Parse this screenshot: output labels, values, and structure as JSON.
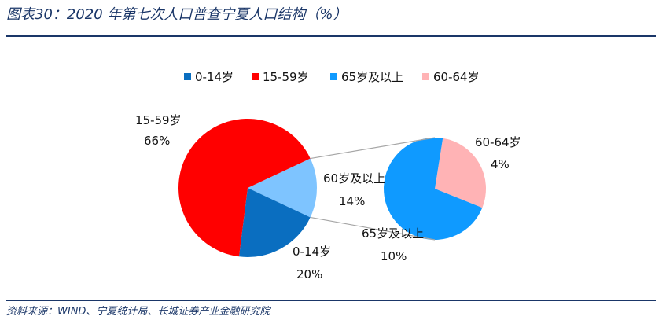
{
  "header": {
    "title": "图表30：2020 年第七次人口普查宁夏人口结构（%）"
  },
  "footer": {
    "source": "资料来源：WIND、宁夏统计局、长城证券产业金融研究院"
  },
  "chart_data": {
    "type": "pie",
    "subtype": "pie-of-pie",
    "legend_position": "top",
    "main_pie": {
      "slices": [
        {
          "name": "0-14岁",
          "value": 20,
          "label": "20%",
          "color": "#0a6ec0"
        },
        {
          "name": "15-59岁",
          "value": 66,
          "label": "66%",
          "color": "#ff0000"
        },
        {
          "name": "60岁及以上",
          "value": 14,
          "label": "14%",
          "color": "#7ec4ff"
        }
      ]
    },
    "secondary_pie": {
      "breakdown_of": "60岁及以上",
      "slices": [
        {
          "name": "65岁及以上",
          "value": 10,
          "label": "10%",
          "color": "#0f9aff"
        },
        {
          "name": "60-64岁",
          "value": 4,
          "label": "4%",
          "color": "#ffb3b5"
        }
      ]
    },
    "legend": [
      {
        "label": "0-14岁",
        "color": "#0a6ec0"
      },
      {
        "label": "15-59岁",
        "color": "#ff0000"
      },
      {
        "label": "65岁及以上",
        "color": "#0f9aff"
      },
      {
        "label": "60-64岁",
        "color": "#ffb3b5"
      }
    ]
  }
}
